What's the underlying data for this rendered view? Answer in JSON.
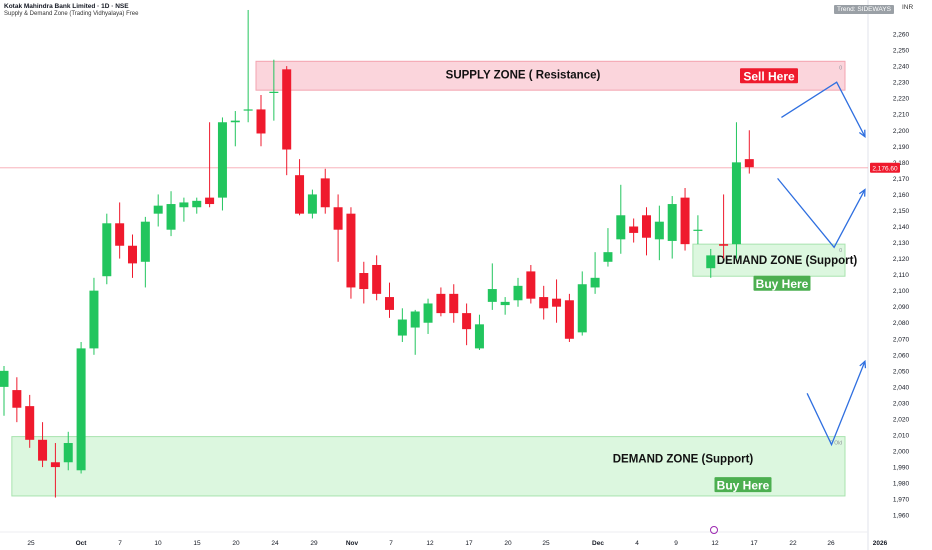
{
  "header": {
    "title": "Kotak Mahindra Bank Limited · 1D · NSE",
    "indicator": "Supply & Demand Zone (Trading Vidhyalaya) Free",
    "trend_badge": "Trend: SIDEWAYS",
    "currency": "INR"
  },
  "chart_data": {
    "type": "candlestick",
    "title": "Kotak Mahindra Bank Limited · 1D · NSE",
    "ylim": [
      1957,
      2270
    ],
    "y_ticks": [
      1960,
      1970,
      1980,
      1990,
      2000,
      2010,
      2020,
      2030,
      2040,
      2050,
      2060,
      2070,
      2080,
      2090,
      2100,
      2110,
      2120,
      2130,
      2140,
      2150,
      2160,
      2170,
      2180,
      2190,
      2200,
      2210,
      2220,
      2230,
      2240,
      2250,
      2260
    ],
    "x_labels": [
      "25",
      "Oct",
      "7",
      "10",
      "15",
      "20",
      "24",
      "29",
      "Nov",
      "7",
      "12",
      "17",
      "20",
      "25",
      "Dec",
      "4",
      "9",
      "12",
      "17",
      "22",
      "26",
      "2026"
    ],
    "last_price": 2176.6,
    "last_price_label": "2,176.60",
    "candles": [
      {
        "o": 2040,
        "h": 2053,
        "l": 2022,
        "c": 2050
      },
      {
        "o": 2038,
        "h": 2046,
        "l": 2018,
        "c": 2027
      },
      {
        "o": 2028,
        "h": 2035,
        "l": 2002,
        "c": 2007
      },
      {
        "o": 2007,
        "h": 2018,
        "l": 1990,
        "c": 1994
      },
      {
        "o": 1993,
        "h": 2005,
        "l": 1971,
        "c": 1990
      },
      {
        "o": 1993,
        "h": 2012,
        "l": 1988,
        "c": 2005
      },
      {
        "o": 1988,
        "h": 2068,
        "l": 1986,
        "c": 2064
      },
      {
        "o": 2064,
        "h": 2108,
        "l": 2060,
        "c": 2100
      },
      {
        "o": 2109,
        "h": 2148,
        "l": 2104,
        "c": 2142
      },
      {
        "o": 2142,
        "h": 2155,
        "l": 2120,
        "c": 2128
      },
      {
        "o": 2128,
        "h": 2135,
        "l": 2108,
        "c": 2117
      },
      {
        "o": 2118,
        "h": 2146,
        "l": 2102,
        "c": 2143
      },
      {
        "o": 2148,
        "h": 2160,
        "l": 2140,
        "c": 2153
      },
      {
        "o": 2138,
        "h": 2162,
        "l": 2134,
        "c": 2154
      },
      {
        "o": 2152,
        "h": 2158,
        "l": 2143,
        "c": 2155
      },
      {
        "o": 2152,
        "h": 2158,
        "l": 2148,
        "c": 2156
      },
      {
        "o": 2158,
        "h": 2205,
        "l": 2152,
        "c": 2154
      },
      {
        "o": 2158,
        "h": 2208,
        "l": 2150,
        "c": 2205
      },
      {
        "o": 2205,
        "h": 2212,
        "l": 2190,
        "c": 2206
      },
      {
        "o": 2213,
        "h": 2275,
        "l": 2205,
        "c": 2213
      },
      {
        "o": 2213,
        "h": 2222,
        "l": 2190,
        "c": 2198
      },
      {
        "o": 2224,
        "h": 2244,
        "l": 2206,
        "c": 2224
      },
      {
        "o": 2238,
        "h": 2240,
        "l": 2172,
        "c": 2188
      },
      {
        "o": 2172,
        "h": 2182,
        "l": 2147,
        "c": 2148
      },
      {
        "o": 2148,
        "h": 2163,
        "l": 2145,
        "c": 2160
      },
      {
        "o": 2170,
        "h": 2176,
        "l": 2148,
        "c": 2152
      },
      {
        "o": 2152,
        "h": 2160,
        "l": 2118,
        "c": 2138
      },
      {
        "o": 2148,
        "h": 2152,
        "l": 2095,
        "c": 2102
      },
      {
        "o": 2111,
        "h": 2118,
        "l": 2092,
        "c": 2101
      },
      {
        "o": 2116,
        "h": 2122,
        "l": 2094,
        "c": 2098
      },
      {
        "o": 2096,
        "h": 2105,
        "l": 2083,
        "c": 2088
      },
      {
        "o": 2072,
        "h": 2089,
        "l": 2068,
        "c": 2082
      },
      {
        "o": 2077,
        "h": 2088,
        "l": 2060,
        "c": 2087
      },
      {
        "o": 2080,
        "h": 2095,
        "l": 2073,
        "c": 2092
      },
      {
        "o": 2098,
        "h": 2102,
        "l": 2084,
        "c": 2086
      },
      {
        "o": 2098,
        "h": 2104,
        "l": 2080,
        "c": 2086
      },
      {
        "o": 2086,
        "h": 2092,
        "l": 2066,
        "c": 2076
      },
      {
        "o": 2064,
        "h": 2085,
        "l": 2063,
        "c": 2079
      },
      {
        "o": 2093,
        "h": 2117,
        "l": 2088,
        "c": 2101
      },
      {
        "o": 2091,
        "h": 2096,
        "l": 2085,
        "c": 2093
      },
      {
        "o": 2094,
        "h": 2108,
        "l": 2090,
        "c": 2103
      },
      {
        "o": 2112,
        "h": 2116,
        "l": 2092,
        "c": 2095
      },
      {
        "o": 2096,
        "h": 2103,
        "l": 2082,
        "c": 2089
      },
      {
        "o": 2095,
        "h": 2107,
        "l": 2080,
        "c": 2090
      },
      {
        "o": 2094,
        "h": 2098,
        "l": 2068,
        "c": 2070
      },
      {
        "o": 2074,
        "h": 2112,
        "l": 2072,
        "c": 2104
      },
      {
        "o": 2102,
        "h": 2124,
        "l": 2098,
        "c": 2108
      },
      {
        "o": 2118,
        "h": 2139,
        "l": 2115,
        "c": 2124
      },
      {
        "o": 2132,
        "h": 2166,
        "l": 2123,
        "c": 2147
      },
      {
        "o": 2140,
        "h": 2145,
        "l": 2130,
        "c": 2136
      },
      {
        "o": 2147,
        "h": 2152,
        "l": 2122,
        "c": 2133
      },
      {
        "o": 2132,
        "h": 2153,
        "l": 2119,
        "c": 2143
      },
      {
        "o": 2131,
        "h": 2159,
        "l": 2120,
        "c": 2154
      },
      {
        "o": 2158,
        "h": 2164,
        "l": 2125,
        "c": 2129
      },
      {
        "o": 2138,
        "h": 2147,
        "l": 2129,
        "c": 2138
      },
      {
        "o": 2114,
        "h": 2126,
        "l": 2108,
        "c": 2122
      },
      {
        "o": 2129,
        "h": 2160,
        "l": 2120,
        "c": 2128
      },
      {
        "o": 2129,
        "h": 2205,
        "l": 2120,
        "c": 2180
      },
      {
        "o": 2182,
        "h": 2200,
        "l": 2173,
        "c": 2177
      }
    ],
    "zones": [
      {
        "kind": "supply",
        "label": "SUPPLY ZONE      ( Resistance)",
        "action": "Sell Here",
        "bottom": 2225,
        "top": 2243,
        "start_candle": 20,
        "marker": "0"
      },
      {
        "kind": "demand",
        "label": "DEMAND ZONE       (Support)",
        "action": "Buy Here",
        "bottom": 2109,
        "top": 2129,
        "start_candle": 54,
        "marker": "0"
      },
      {
        "kind": "demand",
        "label": "DEMAND ZONE       (Support)",
        "action": "Buy Here",
        "bottom": 1972,
        "top": 2009,
        "start_candle": 1,
        "marker": "0 Old"
      }
    ],
    "projections": [
      {
        "points": [
          [
            60.5,
            2208
          ],
          [
            64.8,
            2230
          ],
          [
            67,
            2196
          ]
        ]
      },
      {
        "points": [
          [
            60.2,
            2170
          ],
          [
            64.6,
            2127
          ],
          [
            67,
            2163
          ]
        ]
      },
      {
        "points": [
          [
            62.5,
            2036
          ],
          [
            64.4,
            2004
          ],
          [
            67,
            2056
          ]
        ]
      }
    ]
  },
  "colors": {
    "up": "#22c55e",
    "down": "#ef1a2d",
    "supply_fill": "#fbd5dc",
    "supply_border": "#f3a3af",
    "demand_fill": "#dcf7df",
    "demand_border": "#a8e3ae",
    "sell_badge": "#ef1a2d",
    "buy_badge": "#4caf50",
    "projection": "#2f6fe0",
    "price_tag": "#ef1a2d"
  }
}
